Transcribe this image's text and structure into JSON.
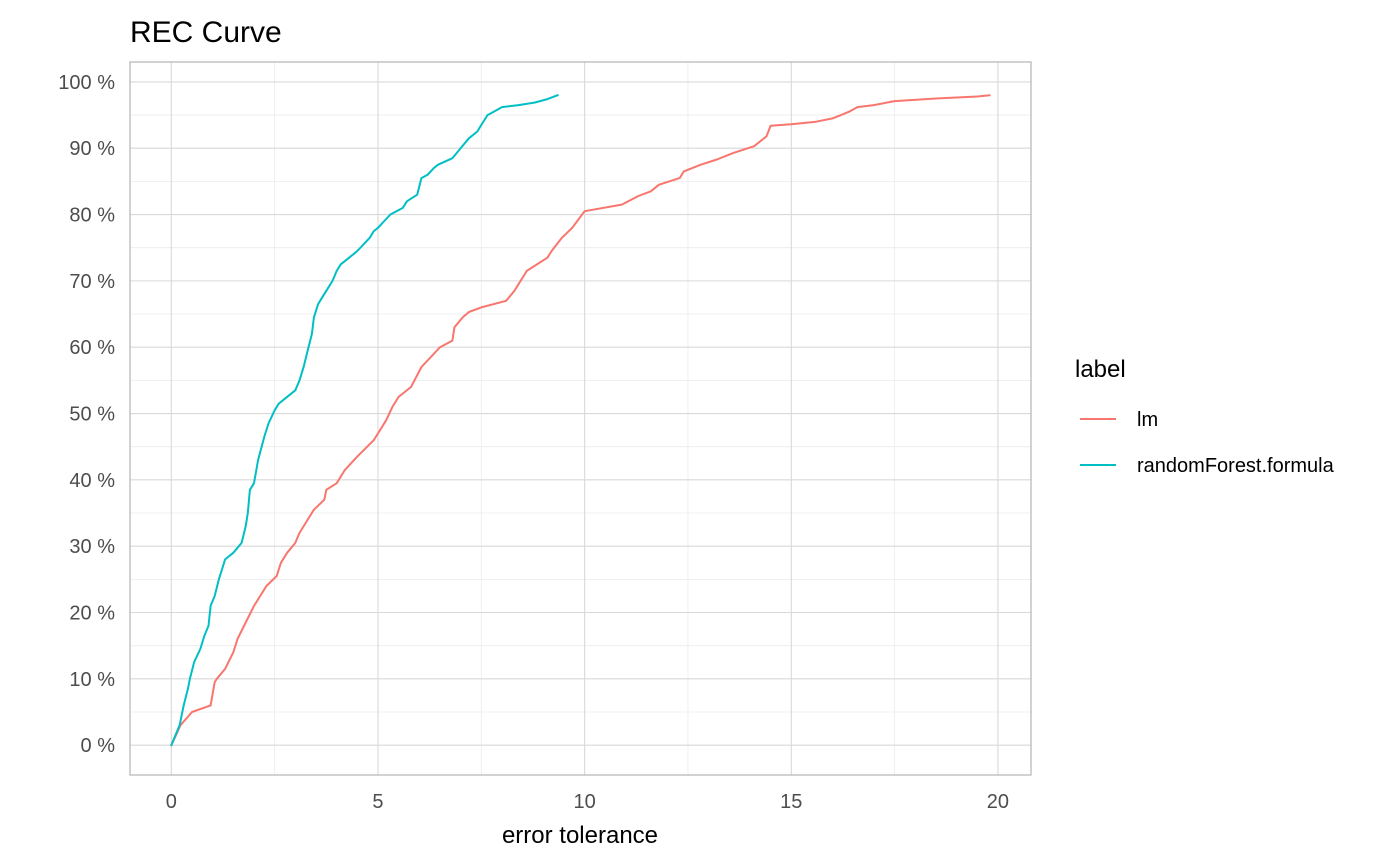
{
  "chart_data": {
    "type": "line",
    "title": "REC Curve",
    "xlabel": "error tolerance",
    "ylabel": "",
    "xlim": [
      -1,
      20.8
    ],
    "ylim": [
      -4.5,
      103
    ],
    "x_ticks": [
      0,
      5,
      10,
      15,
      20
    ],
    "x_tick_labels": [
      "0",
      "5",
      "10",
      "15",
      "20"
    ],
    "y_ticks": [
      0,
      10,
      20,
      30,
      40,
      50,
      60,
      70,
      80,
      90,
      100
    ],
    "y_tick_labels": [
      "0 %",
      "10 %",
      "20 %",
      "30 %",
      "40 %",
      "50 %",
      "60 %",
      "70 %",
      "80 %",
      "90 %",
      "100 %"
    ],
    "grid": true,
    "legend": {
      "title": "label",
      "position": "right"
    },
    "series": [
      {
        "name": "lm",
        "color": "#F8766D",
        "x": [
          0,
          0.15,
          0.22,
          0.5,
          0.95,
          1.05,
          1.1,
          1.3,
          1.5,
          1.6,
          1.8,
          2.0,
          2.2,
          2.3,
          2.55,
          2.65,
          2.8,
          3.0,
          3.1,
          3.3,
          3.45,
          3.7,
          3.75,
          4.0,
          4.2,
          4.5,
          4.9,
          5.0,
          5.2,
          5.35,
          5.5,
          5.8,
          6.05,
          6.2,
          6.5,
          6.8,
          6.85,
          7.05,
          7.2,
          7.5,
          8.1,
          8.3,
          8.6,
          9.1,
          9.2,
          9.45,
          9.7,
          10.0,
          10.9,
          11.3,
          11.6,
          11.8,
          12.3,
          12.4,
          12.8,
          13.2,
          13.6,
          14.1,
          14.4,
          14.5,
          15.0,
          15.6,
          16.0,
          16.4,
          16.6,
          17.0,
          17.5,
          18.5,
          19.5,
          19.8
        ],
        "y": [
          0,
          2,
          3,
          5,
          6,
          9.5,
          10,
          11.5,
          14,
          16,
          18.5,
          21,
          23,
          24,
          25.5,
          27.5,
          29,
          30.5,
          32,
          34,
          35.5,
          37,
          38.5,
          39.5,
          41.5,
          43.5,
          46,
          47,
          49,
          51,
          52.5,
          54,
          57,
          58,
          60,
          61,
          63,
          64.5,
          65.3,
          66,
          67,
          68.5,
          71.5,
          73.5,
          74.5,
          76.5,
          78,
          80.5,
          81.5,
          82.8,
          83.5,
          84.5,
          85.5,
          86.5,
          87.5,
          88.3,
          89.3,
          90.3,
          91.8,
          93.4,
          93.6,
          94,
          94.5,
          95.5,
          96.2,
          96.5,
          97.1,
          97.5,
          97.8,
          98
        ]
      },
      {
        "name": "randomForest.formula",
        "color": "#00BFC4",
        "x": [
          0,
          0.2,
          0.3,
          0.4,
          0.45,
          0.55,
          0.7,
          0.8,
          0.9,
          0.95,
          1.05,
          1.15,
          1.3,
          1.5,
          1.7,
          1.8,
          1.85,
          1.9,
          2.0,
          2.1,
          2.25,
          2.35,
          2.5,
          2.6,
          2.7,
          3.0,
          3.1,
          3.2,
          3.3,
          3.4,
          3.45,
          3.55,
          3.6,
          3.75,
          3.9,
          4.0,
          4.1,
          4.3,
          4.5,
          4.8,
          4.9,
          5.0,
          5.3,
          5.6,
          5.7,
          5.95,
          6.05,
          6.2,
          6.35,
          6.45,
          6.8,
          7.0,
          7.2,
          7.4,
          7.5,
          7.65,
          7.8,
          8.0,
          8.4,
          8.8,
          9.1,
          9.35
        ],
        "y": [
          0,
          3,
          6,
          8.5,
          10,
          12.5,
          14.5,
          16.5,
          18,
          21,
          22.5,
          25,
          28,
          29,
          30.5,
          33,
          35,
          38.5,
          39.5,
          43,
          46.5,
          48.5,
          50.5,
          51.5,
          52,
          53.5,
          55,
          57,
          59.5,
          62,
          64.5,
          66.5,
          67,
          68.5,
          70,
          71.5,
          72.5,
          73.5,
          74.5,
          76.5,
          77.5,
          78,
          80,
          81,
          82,
          83,
          85.5,
          86,
          87,
          87.5,
          88.5,
          90,
          91.5,
          92.5,
          93.5,
          95,
          95.5,
          96.2,
          96.5,
          96.9,
          97.4,
          98
        ]
      }
    ]
  }
}
